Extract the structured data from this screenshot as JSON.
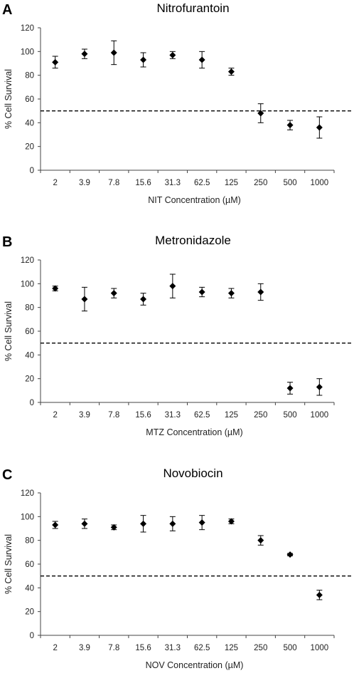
{
  "chart_data": [
    {
      "type": "scatter",
      "panel_label": "A",
      "title": "Nitrofurantoin",
      "xlabel": "NIT Concentration (µM)",
      "ylabel": "% Cell Survival",
      "categories": [
        "2",
        "3.9",
        "7.8",
        "15.6",
        "31.3",
        "62.5",
        "125",
        "250",
        "500",
        "1000"
      ],
      "series": [
        {
          "values": [
            91,
            98,
            99,
            93,
            97,
            93,
            83,
            48,
            38,
            36
          ],
          "error": [
            5,
            4,
            10,
            6,
            3,
            7,
            3,
            8,
            4,
            9
          ]
        }
      ],
      "threshold": 50,
      "ylim": [
        0,
        120
      ],
      "yticks": [
        0,
        20,
        40,
        60,
        80,
        100,
        120
      ],
      "marker": "diamond",
      "threshold_style": "dashed",
      "grid": false,
      "legend": "none"
    },
    {
      "type": "scatter",
      "panel_label": "B",
      "title": "Metronidazole",
      "xlabel": "MTZ Concentration (µM)",
      "ylabel": "% Cell Survival",
      "categories": [
        "2",
        "3.9",
        "7.8",
        "15.6",
        "31.3",
        "62.5",
        "125",
        "250",
        "500",
        "1000"
      ],
      "series": [
        {
          "values": [
            96,
            87,
            92,
            87,
            98,
            93,
            92,
            93,
            12,
            13
          ],
          "error": [
            2,
            10,
            4,
            5,
            10,
            4,
            4,
            7,
            5,
            7
          ]
        }
      ],
      "threshold": 50,
      "ylim": [
        0,
        120
      ],
      "yticks": [
        0,
        20,
        40,
        60,
        80,
        100,
        120
      ],
      "marker": "diamond",
      "threshold_style": "dashed",
      "grid": false,
      "legend": "none"
    },
    {
      "type": "scatter",
      "panel_label": "C",
      "title": "Novobiocin",
      "xlabel": "NOV Concentration (µM)",
      "ylabel": "% Cell Survival",
      "categories": [
        "2",
        "3.9",
        "7.8",
        "15.6",
        "31.3",
        "62.5",
        "125",
        "250",
        "500",
        "1000"
      ],
      "series": [
        {
          "values": [
            93,
            94,
            91,
            94,
            94,
            95,
            96,
            80,
            68,
            34
          ],
          "error": [
            3,
            4,
            2,
            7,
            6,
            6,
            2,
            4,
            1,
            4
          ]
        }
      ],
      "threshold": 50,
      "ylim": [
        0,
        120
      ],
      "yticks": [
        0,
        20,
        40,
        60,
        80,
        100,
        120
      ],
      "marker": "diamond",
      "threshold_style": "dashed",
      "grid": false,
      "legend": "none"
    }
  ]
}
